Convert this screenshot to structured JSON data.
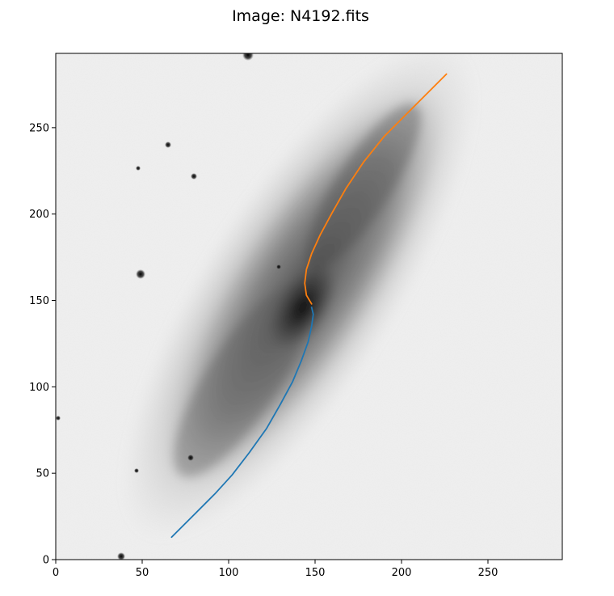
{
  "figure": {
    "title": "Image: N4192.fits"
  },
  "chart_data": {
    "type": "line",
    "title": "Image: N4192.fits",
    "background": "grayscale galaxy image (inverted: dark = bright emission)",
    "xlabel": "",
    "ylabel": "",
    "xlim": [
      0,
      293
    ],
    "ylim": [
      0,
      293
    ],
    "xticks": [
      0,
      50,
      100,
      150,
      200,
      250
    ],
    "yticks": [
      0,
      50,
      100,
      150,
      200,
      250
    ],
    "grid": false,
    "series": [
      {
        "color": "#1f77b4",
        "x": [
          67,
          80,
          92,
          102,
          112,
          122,
          130,
          137,
          142,
          146,
          148,
          149,
          148
        ],
        "y": [
          13,
          26,
          38,
          49,
          62,
          76,
          90,
          103,
          115,
          126,
          135,
          142,
          146
        ]
      },
      {
        "color": "#ff7f0e",
        "x": [
          148,
          145,
          144,
          145,
          148,
          153,
          160,
          168,
          178,
          190,
          203,
          215,
          226
        ],
        "y": [
          148,
          153,
          160,
          168,
          177,
          188,
          201,
          215,
          230,
          245,
          258,
          270,
          281
        ]
      }
    ]
  }
}
